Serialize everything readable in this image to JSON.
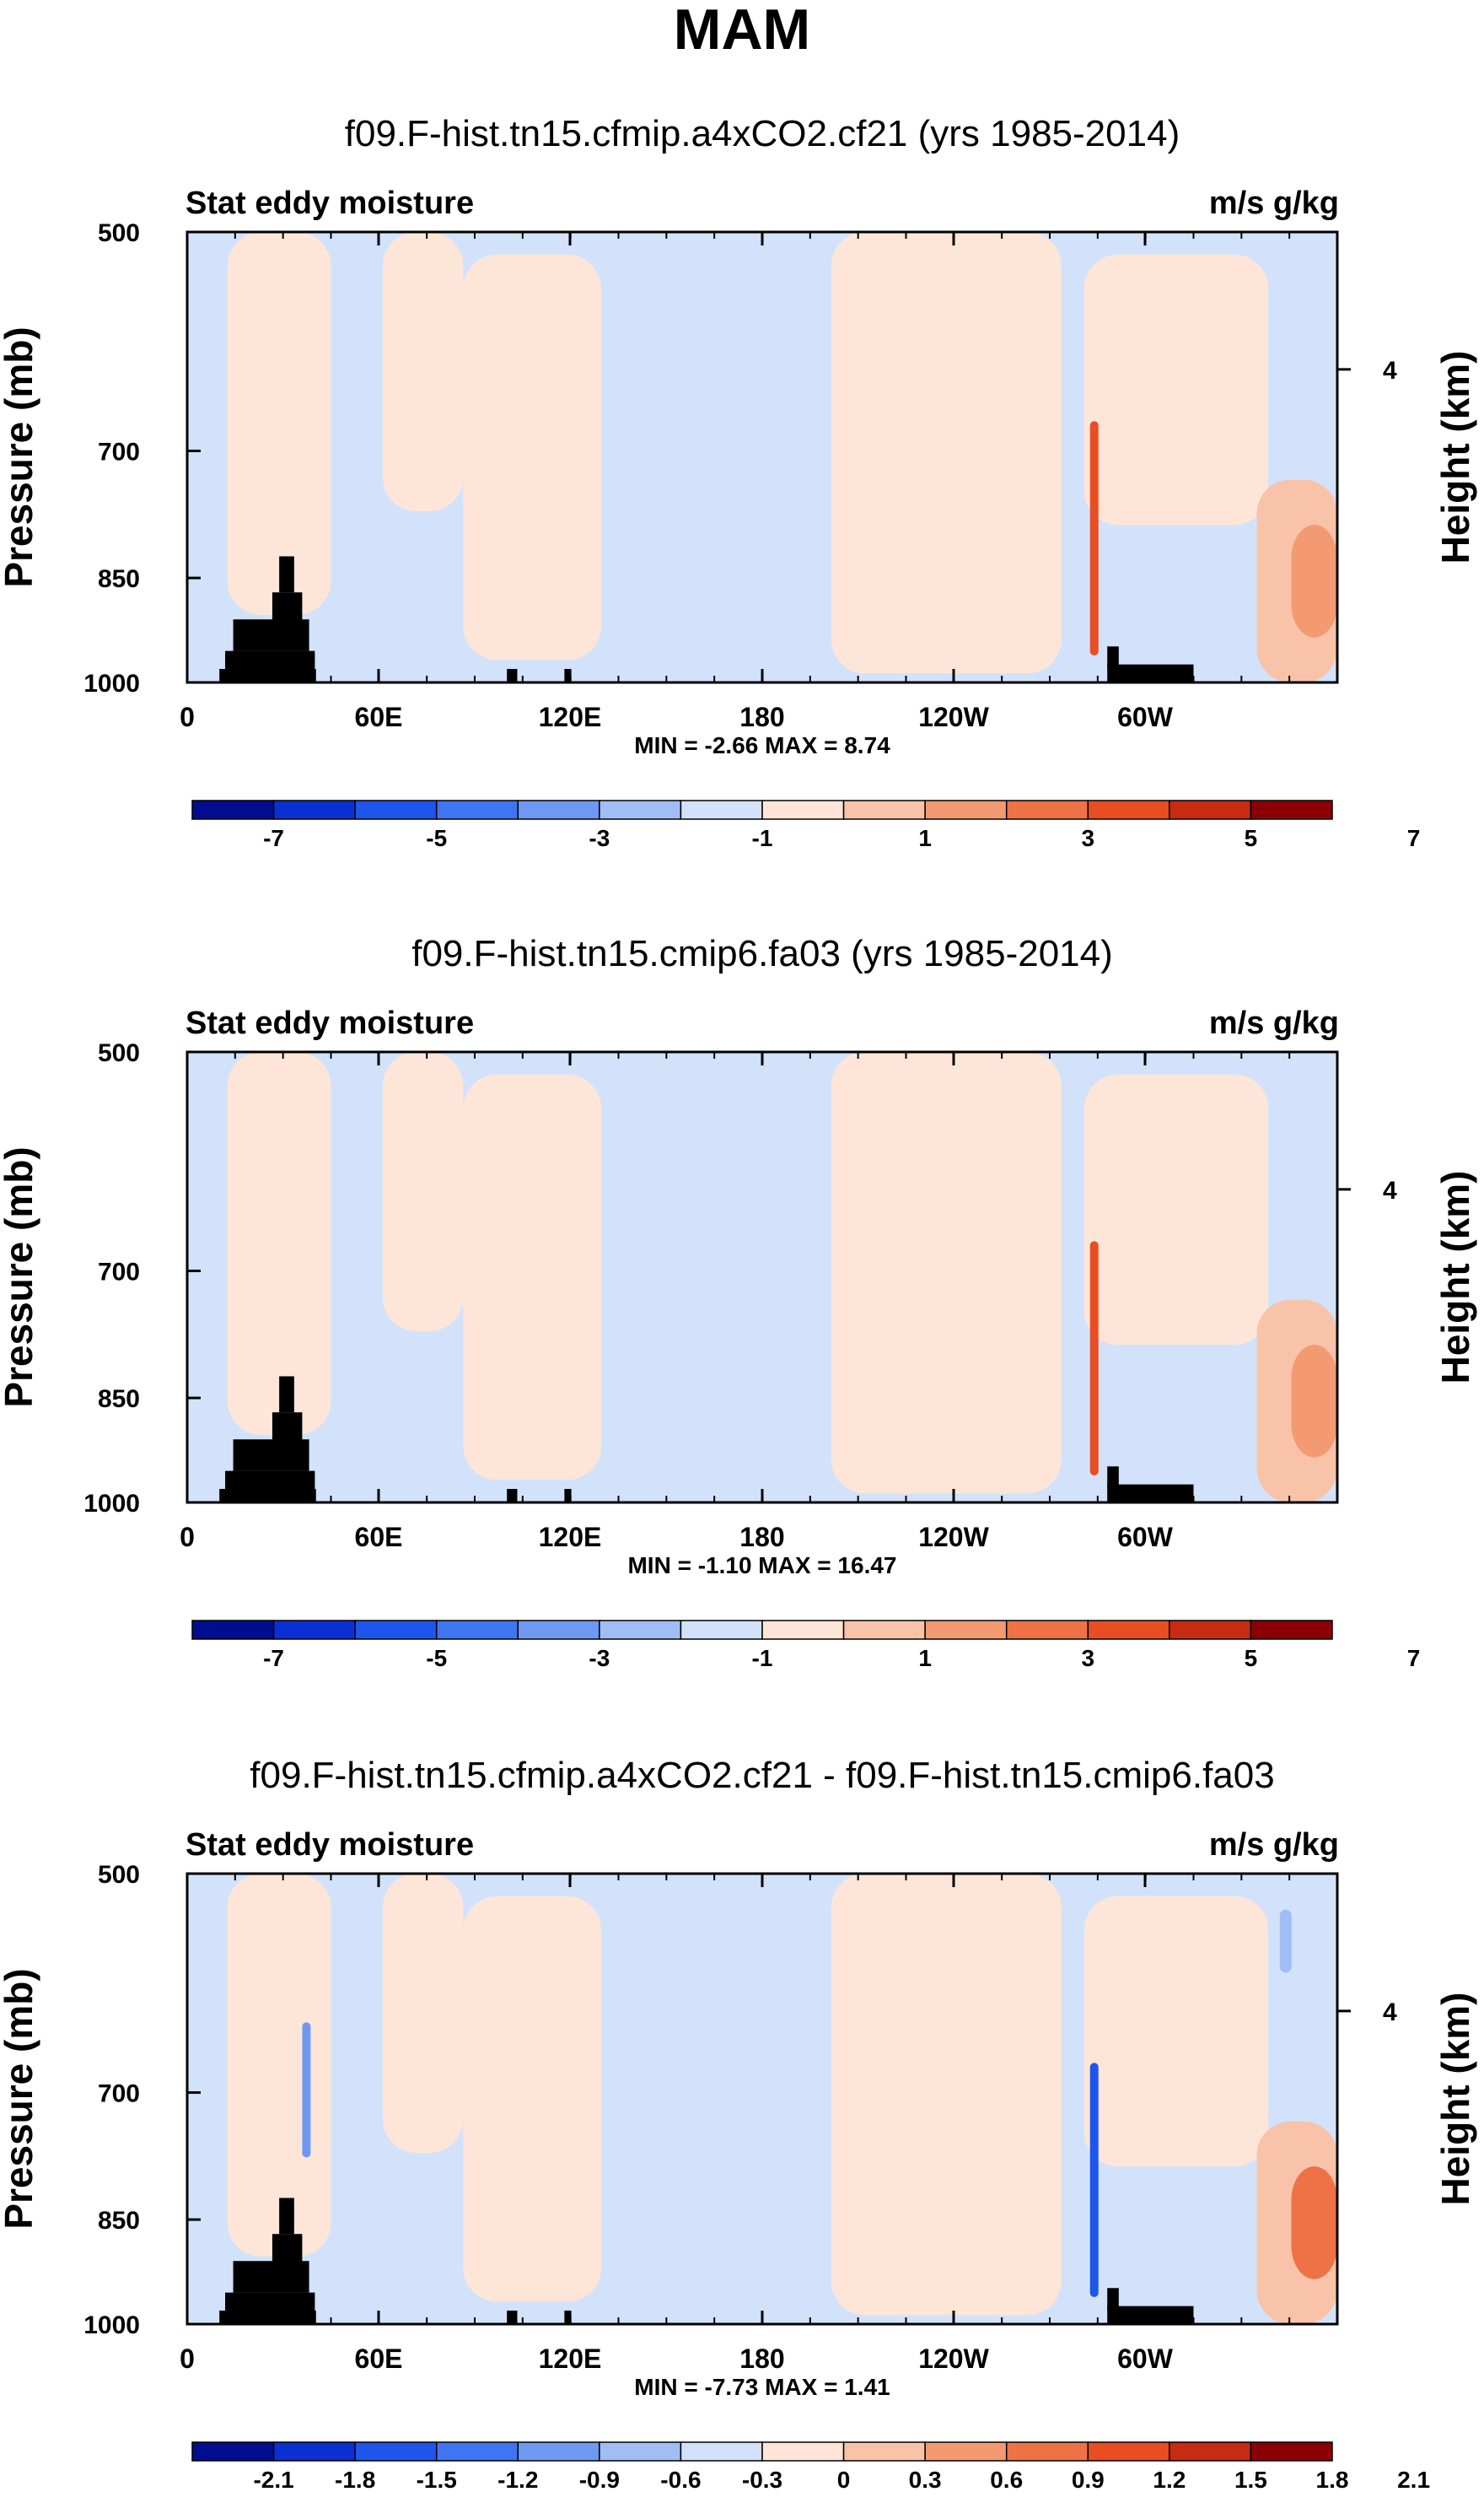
{
  "figure_title": "MAM",
  "chart_data": [
    {
      "type": "heatmap",
      "title": "f09.F-hist.tn15.cfmip.a4xCO2.cf21 (yrs 1985-2014)",
      "left_label": "Stat eddy moisture",
      "right_label": "m/s g/kg",
      "ylabel": "Pressure (mb)",
      "y2label": "Height (km)",
      "yticks": [
        "500",
        "700",
        "850",
        "1000"
      ],
      "y2ticks": [
        "4"
      ],
      "xticks": [
        "0",
        "60E",
        "120E",
        "180",
        "120W",
        "60W"
      ],
      "stats": "MIN =  -2.66   MAX =  8.74",
      "colorbar_labels": [
        "-7",
        "-5",
        "-3",
        "-1",
        "1",
        "3",
        "5",
        "7"
      ],
      "colorbar_colors": [
        "#000d90",
        "#0a2fd2",
        "#1e56ec",
        "#3f75f2",
        "#6f98f3",
        "#a0bdf6",
        "#d2e2fb",
        "#fde6d8",
        "#f8c3a8",
        "#f39a73",
        "#ee7246",
        "#e94d22",
        "#c72b12",
        "#8c0005"
      ],
      "contour_min": -2.66,
      "contour_max": 8.74
    },
    {
      "type": "heatmap",
      "title": "f09.F-hist.tn15.cmip6.fa03 (yrs 1985-2014)",
      "left_label": "Stat eddy moisture",
      "right_label": "m/s g/kg",
      "ylabel": "Pressure (mb)",
      "y2label": "Height (km)",
      "yticks": [
        "500",
        "700",
        "850",
        "1000"
      ],
      "y2ticks": [
        "4"
      ],
      "xticks": [
        "0",
        "60E",
        "120E",
        "180",
        "120W",
        "60W"
      ],
      "stats": "MIN =  -1.10   MAX =  16.47",
      "colorbar_labels": [
        "-7",
        "-5",
        "-3",
        "-1",
        "1",
        "3",
        "5",
        "7"
      ],
      "colorbar_colors": [
        "#000d90",
        "#0a2fd2",
        "#1e56ec",
        "#3f75f2",
        "#6f98f3",
        "#a0bdf6",
        "#d2e2fb",
        "#fde6d8",
        "#f8c3a8",
        "#f39a73",
        "#ee7246",
        "#e94d22",
        "#c72b12",
        "#8c0005"
      ],
      "contour_min": -1.1,
      "contour_max": 16.47
    },
    {
      "type": "heatmap",
      "title": "f09.F-hist.tn15.cfmip.a4xCO2.cf21 - f09.F-hist.tn15.cmip6.fa03",
      "left_label": "Stat eddy moisture",
      "right_label": "m/s g/kg",
      "ylabel": "Pressure (mb)",
      "y2label": "Height (km)",
      "yticks": [
        "500",
        "700",
        "850",
        "1000"
      ],
      "y2ticks": [
        "4"
      ],
      "xticks": [
        "0",
        "60E",
        "120E",
        "180",
        "120W",
        "60W"
      ],
      "stats": "MIN =  -7.73   MAX =  1.41",
      "colorbar_labels": [
        "-2.1",
        "-1.8",
        "-1.5",
        "-1.2",
        "-0.9",
        "-0.6",
        "-0.3",
        "0",
        "0.3",
        "0.6",
        "0.9",
        "1.2",
        "1.5",
        "1.8",
        "2.1"
      ],
      "colorbar_colors": [
        "#000d90",
        "#0a2fd2",
        "#1e56ec",
        "#3f75f2",
        "#6f98f3",
        "#a0bdf6",
        "#d2e2fb",
        "#fde6d8",
        "#f8c3a8",
        "#f39a73",
        "#ee7246",
        "#e94d22",
        "#c72b12",
        "#8c0005"
      ],
      "contour_min": -7.73,
      "contour_max": 1.41
    }
  ]
}
